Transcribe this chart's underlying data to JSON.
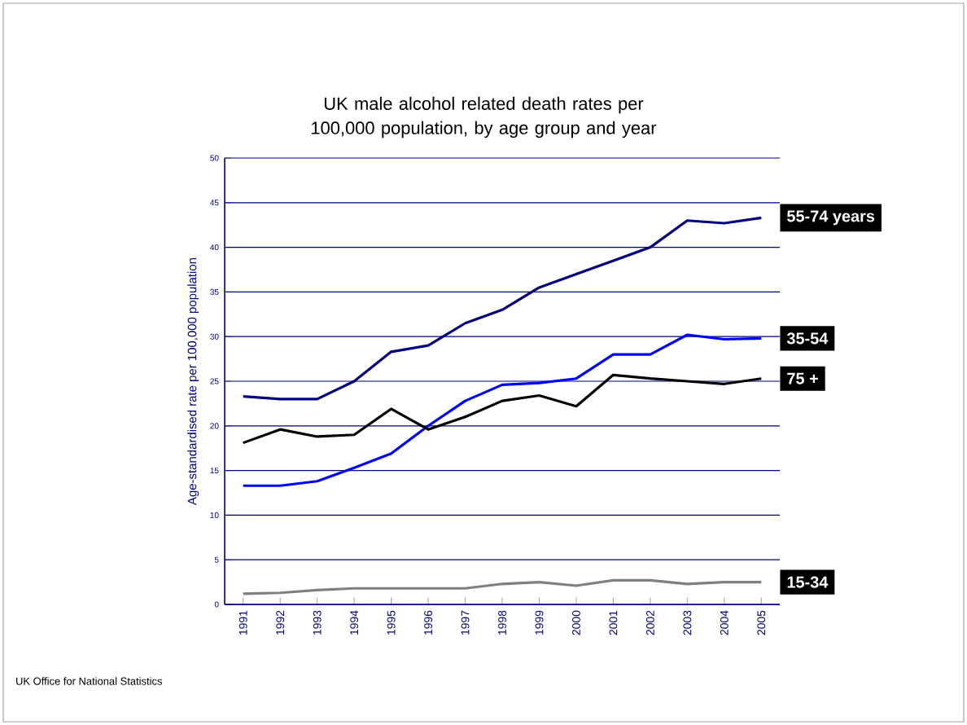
{
  "chart_data": {
    "type": "line",
    "title": "UK male alcohol related death rates per 100,000 population, by age group and year",
    "ylabel": "Age-standardised rate per 100,000 population",
    "annotations": [
      "UK Office for National Statistics"
    ],
    "categories": [
      "1991",
      "1992",
      "1993",
      "1994",
      "1995",
      "1996",
      "1997",
      "1998",
      "1999",
      "2000",
      "2001",
      "2002",
      "2003",
      "2004",
      "2005"
    ],
    "ylim": [
      0,
      50
    ],
    "yticks": [
      0,
      5,
      10,
      15,
      20,
      25,
      30,
      35,
      40,
      45,
      50
    ],
    "grid": "y",
    "legend": false,
    "series": [
      {
        "name": "55-74 years",
        "color": "#000080",
        "values": [
          23.3,
          23,
          23,
          25,
          28.3,
          29,
          31.5,
          33,
          35.5,
          37,
          38.5,
          40,
          43,
          42.7,
          43.3
        ]
      },
      {
        "name": "35-54",
        "color": "#0000ff",
        "values": [
          13.3,
          13.3,
          13.8,
          15.3,
          16.9,
          20,
          22.8,
          24.6,
          24.8,
          25.3,
          28,
          28,
          30.2,
          29.7,
          29.8
        ]
      },
      {
        "name": "75 +",
        "color": "#000000",
        "values": [
          18.1,
          19.6,
          18.8,
          19,
          21.9,
          19.6,
          21,
          22.8,
          23.4,
          22.2,
          25.7,
          25.3,
          25,
          24.7,
          25.3
        ]
      },
      {
        "name": "15-34",
        "color": "#808080",
        "values": [
          1.2,
          1.3,
          1.6,
          1.8,
          1.8,
          1.8,
          1.8,
          2.3,
          2.5,
          2.1,
          2.7,
          2.7,
          2.3,
          2.5,
          2.5
        ]
      }
    ]
  }
}
